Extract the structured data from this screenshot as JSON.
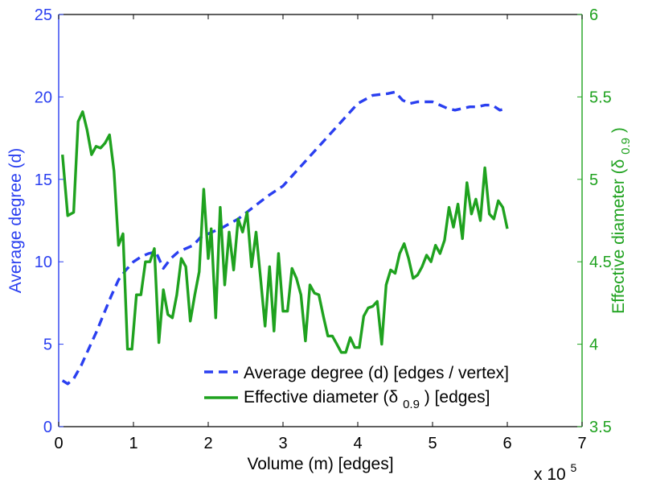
{
  "colors": {
    "left": "#2a3ff0",
    "right": "#1fa21f",
    "axis": "#000000",
    "background": "#ffffff"
  },
  "chart_data": {
    "type": "line",
    "x_label": "Volume (m) [edges]",
    "x_multiplier": "x 10",
    "x_multiplier_exp": "5",
    "xlim": [
      0,
      7
    ],
    "x_ticks": [
      0,
      1,
      2,
      3,
      4,
      5,
      6,
      7
    ],
    "left_axis": {
      "label": "Average degree (d)",
      "ylim": [
        0,
        25
      ],
      "ticks": [
        0,
        5,
        10,
        15,
        20,
        25
      ]
    },
    "right_axis": {
      "label_main": "Effective diameter (δ",
      "label_sub": "0.9",
      "label_end": ")",
      "ylim": [
        3.5,
        6
      ],
      "ticks": [
        "3.5",
        "4",
        "4.5",
        "5",
        "5.5",
        "6"
      ]
    },
    "legend": {
      "position": "bottom-right",
      "entry1": "Average degree (d) [edges / vertex]",
      "entry2_main": "Effective diameter (δ",
      "entry2_sub": "0.9",
      "entry2_end": ") [edges]"
    },
    "series": [
      {
        "name": "Average degree (d) [edges / vertex]",
        "axis": "left",
        "style": "dashed",
        "color": "#2a3ff0",
        "x": [
          0.05,
          0.12,
          0.2,
          0.3,
          0.4,
          0.5,
          0.6,
          0.7,
          0.8,
          0.9,
          1.0,
          1.1,
          1.2,
          1.3,
          1.4,
          1.5,
          1.6,
          1.7,
          1.8,
          1.9,
          2.0,
          2.2,
          2.4,
          2.6,
          2.8,
          3.0,
          3.2,
          3.4,
          3.6,
          3.8,
          4.0,
          4.2,
          4.4,
          4.5,
          4.6,
          4.7,
          4.8,
          4.9,
          5.0,
          5.1,
          5.2,
          5.3,
          5.4,
          5.5,
          5.6,
          5.7,
          5.8,
          5.9,
          6.0
        ],
        "y": [
          2.8,
          2.6,
          2.9,
          3.7,
          4.7,
          5.7,
          6.8,
          7.9,
          8.9,
          9.5,
          10.0,
          10.3,
          10.5,
          10.6,
          9.6,
          10.2,
          10.6,
          10.8,
          11.0,
          11.5,
          11.7,
          12.1,
          12.6,
          13.3,
          14.0,
          14.6,
          15.6,
          16.6,
          17.6,
          18.6,
          19.6,
          20.1,
          20.2,
          20.3,
          19.8,
          19.6,
          19.7,
          19.7,
          19.7,
          19.5,
          19.3,
          19.2,
          19.3,
          19.4,
          19.4,
          19.5,
          19.5,
          19.2,
          19.3
        ]
      },
      {
        "name": "Effective diameter (δ0.9) [edges]",
        "axis": "right",
        "style": "solid",
        "color": "#1fa21f",
        "x": [
          0.05,
          0.12,
          0.2,
          0.26,
          0.32,
          0.38,
          0.44,
          0.5,
          0.56,
          0.62,
          0.68,
          0.74,
          0.8,
          0.86,
          0.92,
          0.98,
          1.04,
          1.1,
          1.16,
          1.22,
          1.28,
          1.34,
          1.4,
          1.46,
          1.52,
          1.58,
          1.64,
          1.7,
          1.76,
          1.82,
          1.88,
          1.94,
          2.0,
          2.04,
          2.1,
          2.16,
          2.22,
          2.28,
          2.34,
          2.4,
          2.46,
          2.52,
          2.58,
          2.64,
          2.7,
          2.76,
          2.82,
          2.88,
          2.94,
          3.0,
          3.06,
          3.12,
          3.18,
          3.24,
          3.3,
          3.36,
          3.42,
          3.48,
          3.54,
          3.6,
          3.66,
          3.72,
          3.78,
          3.84,
          3.9,
          3.96,
          4.02,
          4.08,
          4.14,
          4.2,
          4.26,
          4.32,
          4.38,
          4.44,
          4.5,
          4.56,
          4.62,
          4.68,
          4.74,
          4.8,
          4.86,
          4.92,
          4.98,
          5.04,
          5.1,
          5.16,
          5.22,
          5.28,
          5.34,
          5.4,
          5.46,
          5.52,
          5.58,
          5.64,
          5.7,
          5.76,
          5.82,
          5.88,
          5.94,
          6.0
        ],
        "y": [
          5.15,
          4.78,
          4.8,
          5.35,
          5.41,
          5.3,
          5.15,
          5.2,
          5.19,
          5.22,
          5.27,
          5.05,
          4.6,
          4.67,
          3.97,
          3.97,
          4.3,
          4.3,
          4.5,
          4.5,
          4.58,
          4.01,
          4.33,
          4.18,
          4.16,
          4.3,
          4.52,
          4.47,
          4.14,
          4.3,
          4.44,
          4.94,
          4.52,
          4.7,
          4.16,
          4.83,
          4.36,
          4.68,
          4.45,
          4.76,
          4.68,
          4.8,
          4.47,
          4.68,
          4.4,
          4.11,
          4.47,
          4.08,
          4.55,
          4.2,
          4.2,
          4.46,
          4.4,
          4.3,
          4.02,
          4.36,
          4.31,
          4.3,
          4.17,
          4.05,
          4.05,
          4.0,
          3.95,
          3.95,
          4.04,
          3.98,
          3.98,
          4.17,
          4.22,
          4.23,
          4.26,
          4.0,
          4.36,
          4.45,
          4.43,
          4.55,
          4.61,
          4.52,
          4.4,
          4.42,
          4.47,
          4.54,
          4.5,
          4.6,
          4.55,
          4.63,
          4.83,
          4.71,
          4.85,
          4.64,
          4.98,
          4.79,
          4.88,
          4.75,
          5.07,
          4.79,
          4.76,
          4.87,
          4.83,
          4.7
        ]
      }
    ]
  }
}
